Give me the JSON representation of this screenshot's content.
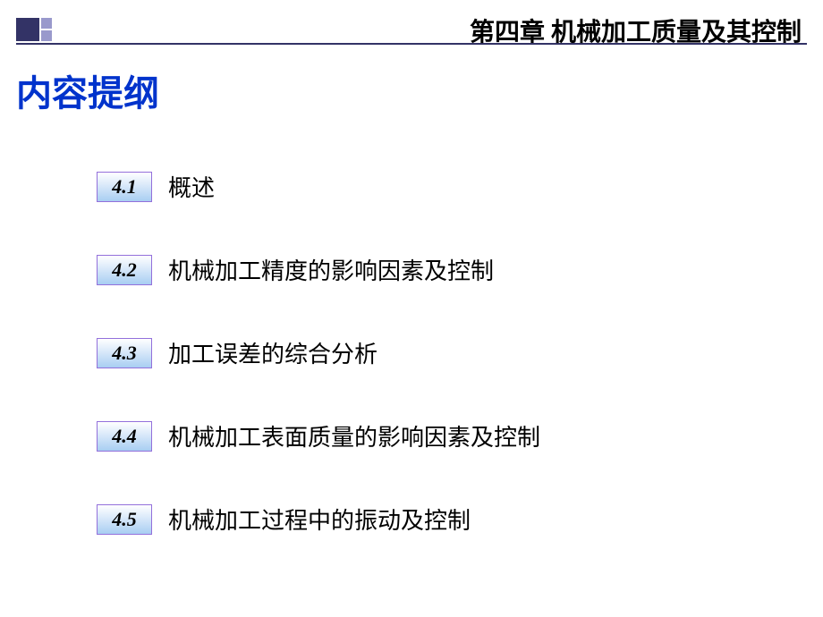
{
  "header": {
    "chapter_title": "第四章  机械加工质量及其控制",
    "decoration_color_primary": "#333366",
    "decoration_color_secondary": "#9999cc"
  },
  "content": {
    "heading": "内容提纲",
    "heading_color": "#0033cc"
  },
  "outline": {
    "badge_border_color": "#9370db",
    "badge_gradient_top": "#ffffff",
    "badge_gradient_mid": "#d4e6f9",
    "badge_gradient_bottom": "#a8cef2",
    "items": [
      {
        "number": "4.1",
        "title": "概述"
      },
      {
        "number": "4.2",
        "title": "机械加工精度的影响因素及控制"
      },
      {
        "number": "4.3",
        "title": "加工误差的综合分析"
      },
      {
        "number": "4.4",
        "title": "机械加工表面质量的影响因素及控制"
      },
      {
        "number": "4.5",
        "title": "机械加工过程中的振动及控制"
      }
    ]
  }
}
